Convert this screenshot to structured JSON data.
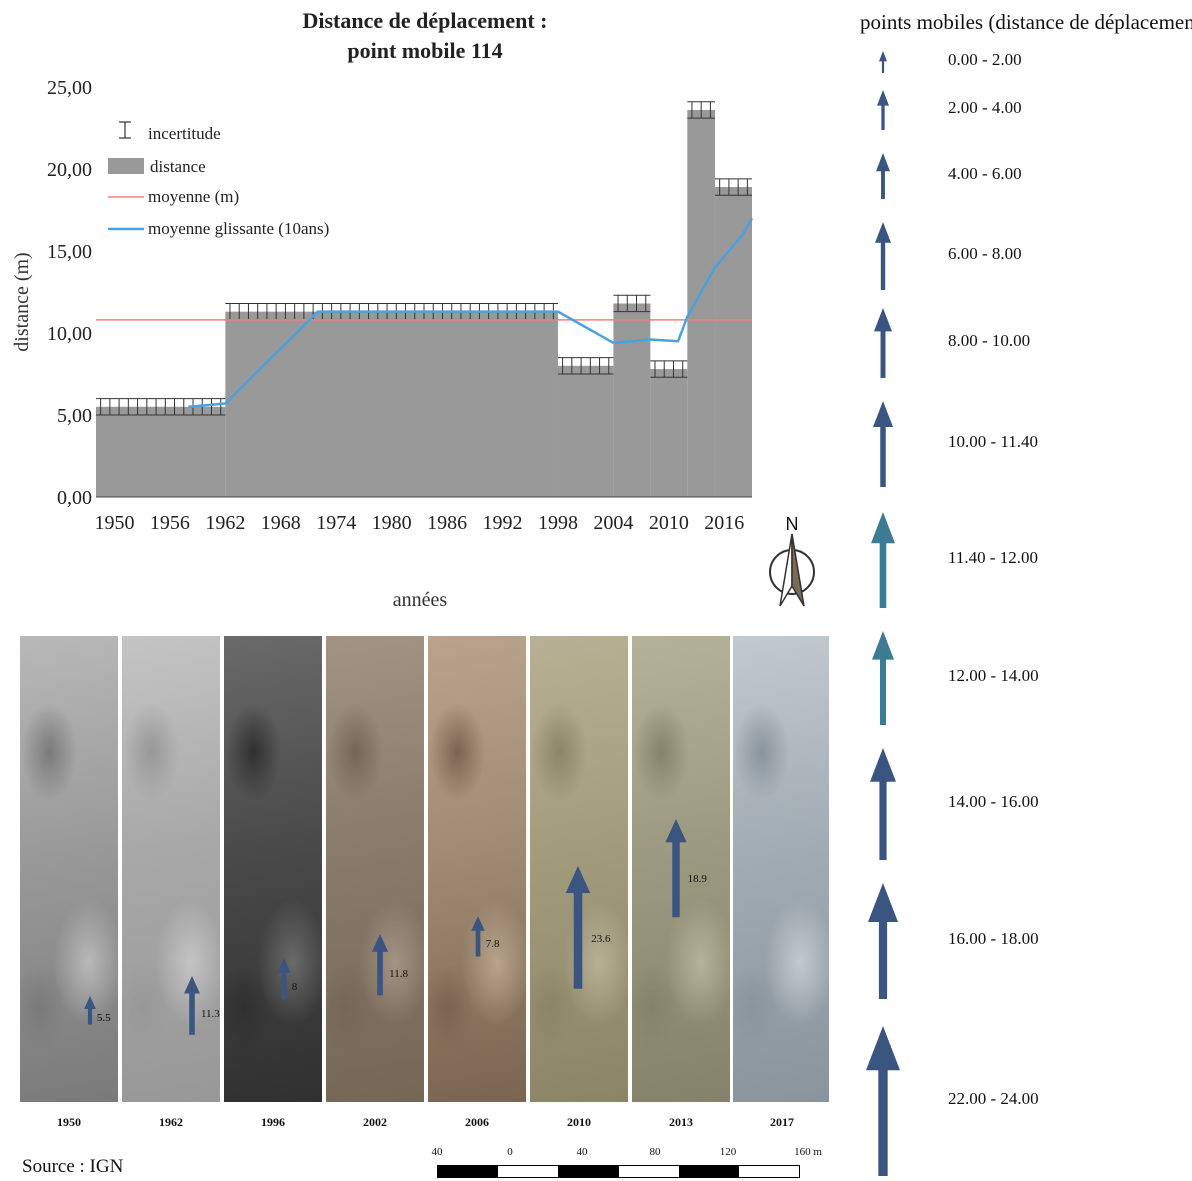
{
  "chart_data": {
    "type": "bar",
    "title": "Distance de déplacement :",
    "subtitle": "point mobile 114",
    "xlabel": "années",
    "ylabel": "distance (m)",
    "ylim": [
      0,
      25
    ],
    "xlim": [
      1948,
      2019
    ],
    "yticks": [
      "0,00",
      "5,00",
      "10,00",
      "15,00",
      "20,00",
      "25,00"
    ],
    "xticks": [
      "1950",
      "1956",
      "1962",
      "1968",
      "1974",
      "1980",
      "1986",
      "1992",
      "1998",
      "2004",
      "2010",
      "2016"
    ],
    "grid": false,
    "legend_position": "top-left",
    "legend": {
      "uncertainty": "incertitude",
      "distance": "distance",
      "mean": "moyenne (m)",
      "rolling_mean": "moyenne glissante (10ans)"
    },
    "distance_series": [
      {
        "start": 1948,
        "end": 1962,
        "value": 5.5
      },
      {
        "start": 1962,
        "end": 1998,
        "value": 11.3
      },
      {
        "start": 1998,
        "end": 2004,
        "value": 8.0
      },
      {
        "start": 2004,
        "end": 2008,
        "value": 11.8
      },
      {
        "start": 2008,
        "end": 2012,
        "value": 7.8
      },
      {
        "start": 2012,
        "end": 2015,
        "value": 23.6
      },
      {
        "start": 2015,
        "end": 2019,
        "value": 18.9
      }
    ],
    "uncertainty_m": 0.5,
    "mean_value": 10.8,
    "rolling_mean": {
      "x": [
        1958,
        1962,
        1972,
        1998,
        2004,
        2008,
        2011,
        2012,
        2015,
        2018,
        2019
      ],
      "y": [
        5.5,
        5.7,
        11.3,
        11.3,
        9.4,
        9.6,
        9.5,
        11.0,
        14.0,
        16.0,
        17.0
      ]
    },
    "colors": {
      "bars": "#999999",
      "error_bars": "#333333",
      "mean_line": "#f08080",
      "rolling_mean_line": "#4aa3df"
    }
  },
  "arrow_legend": {
    "title": "points mobiles (distance de déplacement)",
    "color": "#3a5580",
    "classes": [
      {
        "label": "0.00 - 2.00"
      },
      {
        "label": "2.00 - 4.00"
      },
      {
        "label": "4.00 - 6.00"
      },
      {
        "label": "6.00 - 8.00"
      },
      {
        "label": "8.00 - 10.00"
      },
      {
        "label": "10.00 - 11.40"
      },
      {
        "label": "11.40 - 12.00",
        "color": "#3d7a94"
      },
      {
        "label": "12.00 - 14.00",
        "color": "#3d7a94"
      },
      {
        "label": "14.00 - 16.00"
      },
      {
        "label": "16.00 - 18.00"
      },
      {
        "label": "22.00 - 24.00"
      }
    ]
  },
  "north_arrow": {
    "label": "N"
  },
  "orthophotos": [
    {
      "year": "1950",
      "value_label": "5.5",
      "value": 5.5,
      "colors": [
        "#9a9a9a",
        "#b8b8b8",
        "#7a7a7a"
      ]
    },
    {
      "year": "1962",
      "value_label": "11.3",
      "value": 11.3,
      "colors": [
        "#a8a8a8",
        "#c4c4c4",
        "#989898"
      ]
    },
    {
      "year": "1996",
      "value_label": "8",
      "value": 8,
      "colors": [
        "#4a4a4a",
        "#6a6a6a",
        "#303030"
      ]
    },
    {
      "year": "2002",
      "value_label": "11.8",
      "value": 11.8,
      "colors": [
        "#8a7a6c",
        "#a39384",
        "#766656"
      ]
    },
    {
      "year": "2006",
      "value_label": "7.8",
      "value": 7.8,
      "colors": [
        "#a08c74",
        "#b8a48c",
        "#7a6650"
      ]
    },
    {
      "year": "2010",
      "value_label": "23.6",
      "value": 23.6,
      "colors": [
        "#a39c7c",
        "#b8b094",
        "#8c8466"
      ]
    },
    {
      "year": "2013",
      "value_label": "18.9",
      "value": 18.9,
      "colors": [
        "#9c9a80",
        "#b4b298",
        "#84826a"
      ]
    },
    {
      "year": "2017",
      "value_label": "",
      "value": 0,
      "colors": [
        "#a2acb4",
        "#c2cad0",
        "#8a949c"
      ]
    }
  ],
  "scale_bar": {
    "labels": [
      "40",
      "0",
      "40",
      "80",
      "120",
      "160 m"
    ]
  },
  "source": "Source : IGN"
}
